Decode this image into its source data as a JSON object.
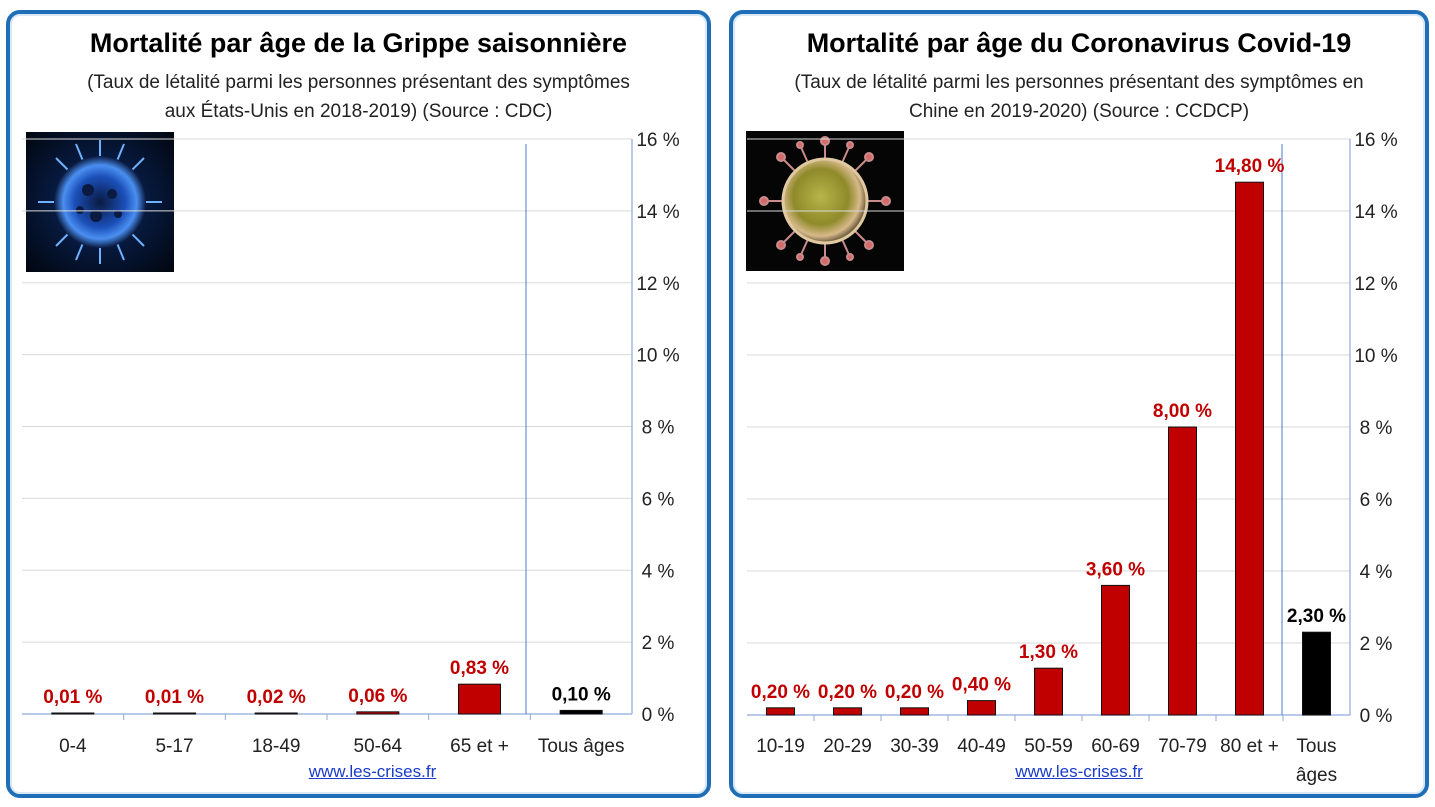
{
  "charts": [
    {
      "title": "Mortalité par âge de la Grippe saisonnière",
      "subtitle": "(Taux de létalité parmi les personnes présentant des symptômes aux États-Unis en 2018-2019) (Source : CDC)",
      "credit": "www.les-crises.fr",
      "image_icon": "flu-virus-image"
    },
    {
      "title": "Mortalité par âge du Coronavirus Covid-19",
      "subtitle": "(Taux de létalité parmi les personnes présentant des symptômes en Chine en 2019-2020) (Source : CCDCP)",
      "credit": "www.les-crises.fr",
      "image_icon": "coronavirus-image"
    }
  ],
  "chart_data": [
    {
      "type": "bar",
      "title": "Mortalité par âge de la Grippe saisonnière",
      "categories": [
        "0-4",
        "5-17",
        "18-49",
        "50-64",
        "65 et +",
        "Tous âges"
      ],
      "values": [
        0.01,
        0.01,
        0.02,
        0.06,
        0.83,
        0.1
      ],
      "value_labels": [
        "0,01 %",
        "0,01 %",
        "0,02 %",
        "0,06 %",
        "0,83 %",
        "0,10 %"
      ],
      "bar_colors": [
        "#c00000",
        "#c00000",
        "#c00000",
        "#c00000",
        "#c00000",
        "#000000"
      ],
      "label_colors": [
        "#c00000",
        "#c00000",
        "#c00000",
        "#c00000",
        "#c00000",
        "#000000"
      ],
      "ylim": [
        0,
        16
      ],
      "yticks": [
        0,
        2,
        4,
        6,
        8,
        10,
        12,
        14,
        16
      ],
      "ytick_labels": [
        "0 %",
        "2 %",
        "4 %",
        "6 %",
        "8 %",
        "10 %",
        "12 %",
        "14 %",
        "16 %"
      ],
      "y_axis_side": "right",
      "grid": true
    },
    {
      "type": "bar",
      "title": "Mortalité par âge du Coronavirus Covid-19",
      "categories": [
        "10-19",
        "20-29",
        "30-39",
        "40-49",
        "50-59",
        "60-69",
        "70-79",
        "80 et +",
        "Tous âges"
      ],
      "values": [
        0.2,
        0.2,
        0.2,
        0.4,
        1.3,
        3.6,
        8.0,
        14.8,
        2.3
      ],
      "value_labels": [
        "0,20 %",
        "0,20 %",
        "0,20 %",
        "0,40 %",
        "1,30 %",
        "3,60 %",
        "8,00 %",
        "14,80 %",
        "2,30 %"
      ],
      "bar_colors": [
        "#c00000",
        "#c00000",
        "#c00000",
        "#c00000",
        "#c00000",
        "#c00000",
        "#c00000",
        "#c00000",
        "#000000"
      ],
      "label_colors": [
        "#c00000",
        "#c00000",
        "#c00000",
        "#c00000",
        "#c00000",
        "#c00000",
        "#c00000",
        "#c00000",
        "#000000"
      ],
      "ylim": [
        0,
        16
      ],
      "yticks": [
        0,
        2,
        4,
        6,
        8,
        10,
        12,
        14,
        16
      ],
      "ytick_labels": [
        "0 %",
        "2 %",
        "4 %",
        "6 %",
        "8 %",
        "10 %",
        "12 %",
        "14 %",
        "16 %"
      ],
      "y_axis_side": "right",
      "grid": true
    }
  ]
}
